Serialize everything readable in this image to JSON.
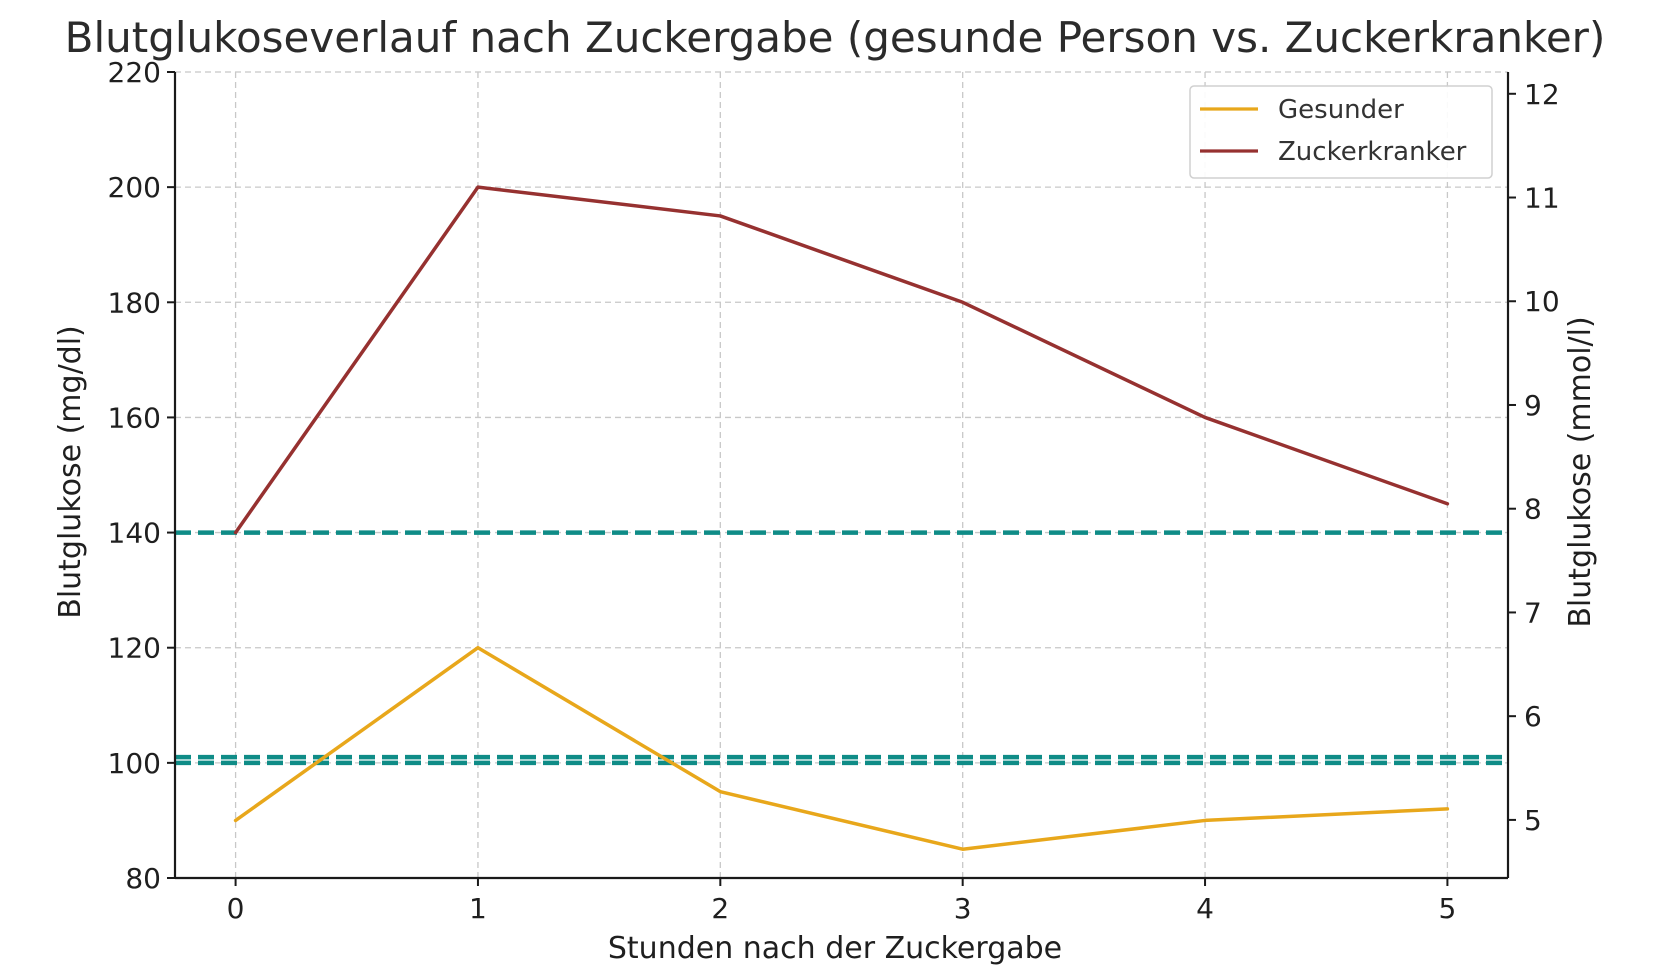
{
  "chart_data": {
    "type": "line",
    "title": "Blutglukoseverlauf nach Zuckergabe (gesunde Person vs. Zuckerkranker)",
    "xlabel": "Stunden nach der Zuckergabe",
    "ylabel": "Blutglukose (mg/dl)",
    "ylabel_right": "Blutglukose (mmol/l)",
    "x": [
      0,
      1,
      2,
      3,
      4,
      5
    ],
    "x_ticks": [
      "0",
      "1",
      "2",
      "3",
      "4",
      "5"
    ],
    "xlim": [
      -0.25,
      5.25
    ],
    "ylim": [
      80,
      220
    ],
    "y_ticks": [
      "80",
      "100",
      "120",
      "140",
      "160",
      "180",
      "200",
      "220"
    ],
    "ylim_right": [
      4.44,
      12.21
    ],
    "y_ticks_right": [
      "5",
      "6",
      "7",
      "8",
      "9",
      "10",
      "11",
      "12"
    ],
    "grid": true,
    "legend_position": "top-right",
    "series": [
      {
        "name": "Gesunder",
        "color": "#E8A71B",
        "values": [
          90,
          120,
          95,
          85,
          90,
          92
        ]
      },
      {
        "name": "Zuckerkranker",
        "color": "#963130",
        "values": [
          140,
          200,
          195,
          180,
          160,
          145
        ]
      }
    ],
    "reference_lines": [
      {
        "y": 140,
        "color": "#0F8C87",
        "style": "dashed"
      },
      {
        "y": 101,
        "color": "#0F8C87",
        "style": "dashed"
      },
      {
        "y": 100,
        "color": "#0F8C87",
        "style": "dashed"
      }
    ],
    "right_axis_color": "#0F8C87"
  }
}
